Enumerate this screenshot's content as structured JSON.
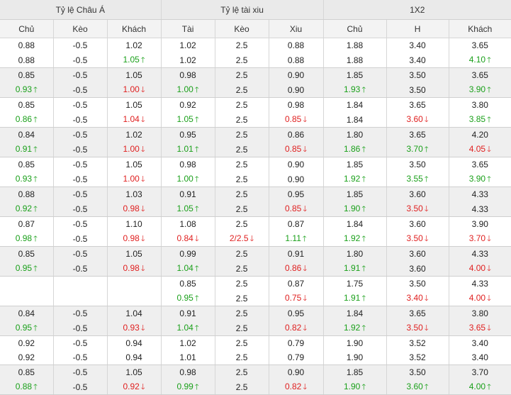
{
  "groups": [
    "Tỷ lệ Châu Á",
    "Tỷ lệ tài xiu",
    "1X2"
  ],
  "columns": [
    "Chủ",
    "Kèo",
    "Khách",
    "Tài",
    "Kèo",
    "Xiu",
    "Chủ",
    "H",
    "Khách"
  ],
  "up_arrow": "🡑",
  "down_arrow": "🡓",
  "colors": {
    "up": "#1aa01a",
    "down": "#e02020",
    "header_bg": "#eaeaea",
    "row_alt_bg": "#efefef"
  },
  "rows": [
    [
      [
        {
          "v": "0.88"
        },
        {
          "v": "-0.5"
        },
        {
          "v": "1.02"
        },
        {
          "v": "1.02"
        },
        {
          "v": "2.5"
        },
        {
          "v": "0.88"
        },
        {
          "v": "1.88"
        },
        {
          "v": "3.40"
        },
        {
          "v": "3.65"
        }
      ],
      [
        {
          "v": "0.88"
        },
        {
          "v": "-0.5"
        },
        {
          "v": "1.05",
          "d": "up"
        },
        {
          "v": "1.02"
        },
        {
          "v": "2.5"
        },
        {
          "v": "0.88"
        },
        {
          "v": "1.88"
        },
        {
          "v": "3.40"
        },
        {
          "v": "4.10",
          "d": "up"
        }
      ]
    ],
    [
      [
        {
          "v": "0.85"
        },
        {
          "v": "-0.5"
        },
        {
          "v": "1.05"
        },
        {
          "v": "0.98"
        },
        {
          "v": "2.5"
        },
        {
          "v": "0.90"
        },
        {
          "v": "1.85"
        },
        {
          "v": "3.50"
        },
        {
          "v": "3.65"
        }
      ],
      [
        {
          "v": "0.93",
          "d": "up"
        },
        {
          "v": "-0.5"
        },
        {
          "v": "1.00",
          "d": "down"
        },
        {
          "v": "1.00",
          "d": "up"
        },
        {
          "v": "2.5"
        },
        {
          "v": "0.90"
        },
        {
          "v": "1.93",
          "d": "up"
        },
        {
          "v": "3.50"
        },
        {
          "v": "3.90",
          "d": "up"
        }
      ]
    ],
    [
      [
        {
          "v": "0.85"
        },
        {
          "v": "-0.5"
        },
        {
          "v": "1.05"
        },
        {
          "v": "0.92"
        },
        {
          "v": "2.5"
        },
        {
          "v": "0.98"
        },
        {
          "v": "1.84"
        },
        {
          "v": "3.65"
        },
        {
          "v": "3.80"
        }
      ],
      [
        {
          "v": "0.86",
          "d": "up"
        },
        {
          "v": "-0.5"
        },
        {
          "v": "1.04",
          "d": "down"
        },
        {
          "v": "1.05",
          "d": "up"
        },
        {
          "v": "2.5"
        },
        {
          "v": "0.85",
          "d": "down"
        },
        {
          "v": "1.84"
        },
        {
          "v": "3.60",
          "d": "down"
        },
        {
          "v": "3.85",
          "d": "up"
        }
      ]
    ],
    [
      [
        {
          "v": "0.84"
        },
        {
          "v": "-0.5"
        },
        {
          "v": "1.02"
        },
        {
          "v": "0.95"
        },
        {
          "v": "2.5"
        },
        {
          "v": "0.86"
        },
        {
          "v": "1.80"
        },
        {
          "v": "3.65"
        },
        {
          "v": "4.20"
        }
      ],
      [
        {
          "v": "0.91",
          "d": "up"
        },
        {
          "v": "-0.5"
        },
        {
          "v": "1.00",
          "d": "down"
        },
        {
          "v": "1.01",
          "d": "up"
        },
        {
          "v": "2.5"
        },
        {
          "v": "0.85",
          "d": "down"
        },
        {
          "v": "1.86",
          "d": "up"
        },
        {
          "v": "3.70",
          "d": "up"
        },
        {
          "v": "4.05",
          "d": "down"
        }
      ]
    ],
    [
      [
        {
          "v": "0.85"
        },
        {
          "v": "-0.5"
        },
        {
          "v": "1.05"
        },
        {
          "v": "0.98"
        },
        {
          "v": "2.5"
        },
        {
          "v": "0.90"
        },
        {
          "v": "1.85"
        },
        {
          "v": "3.50"
        },
        {
          "v": "3.65"
        }
      ],
      [
        {
          "v": "0.93",
          "d": "up"
        },
        {
          "v": "-0.5"
        },
        {
          "v": "1.00",
          "d": "down"
        },
        {
          "v": "1.00",
          "d": "up"
        },
        {
          "v": "2.5"
        },
        {
          "v": "0.90"
        },
        {
          "v": "1.92",
          "d": "up"
        },
        {
          "v": "3.55",
          "d": "up"
        },
        {
          "v": "3.90",
          "d": "up"
        }
      ]
    ],
    [
      [
        {
          "v": "0.88"
        },
        {
          "v": "-0.5"
        },
        {
          "v": "1.03"
        },
        {
          "v": "0.91"
        },
        {
          "v": "2.5"
        },
        {
          "v": "0.95"
        },
        {
          "v": "1.85"
        },
        {
          "v": "3.60"
        },
        {
          "v": "4.33"
        }
      ],
      [
        {
          "v": "0.92",
          "d": "up"
        },
        {
          "v": "-0.5"
        },
        {
          "v": "0.98",
          "d": "down"
        },
        {
          "v": "1.05",
          "d": "up"
        },
        {
          "v": "2.5"
        },
        {
          "v": "0.85",
          "d": "down"
        },
        {
          "v": "1.90",
          "d": "up"
        },
        {
          "v": "3.50",
          "d": "down"
        },
        {
          "v": "4.33"
        }
      ]
    ],
    [
      [
        {
          "v": "0.87"
        },
        {
          "v": "-0.5"
        },
        {
          "v": "1.10"
        },
        {
          "v": "1.08"
        },
        {
          "v": "2.5"
        },
        {
          "v": "0.87"
        },
        {
          "v": "1.84"
        },
        {
          "v": "3.60"
        },
        {
          "v": "3.90"
        }
      ],
      [
        {
          "v": "0.98",
          "d": "up"
        },
        {
          "v": "-0.5"
        },
        {
          "v": "0.98",
          "d": "down"
        },
        {
          "v": "0.84",
          "d": "down"
        },
        {
          "v": "2/2.5",
          "d": "down"
        },
        {
          "v": "1.11",
          "d": "up"
        },
        {
          "v": "1.92",
          "d": "up"
        },
        {
          "v": "3.50",
          "d": "down"
        },
        {
          "v": "3.70",
          "d": "down"
        }
      ]
    ],
    [
      [
        {
          "v": "0.85"
        },
        {
          "v": "-0.5"
        },
        {
          "v": "1.05"
        },
        {
          "v": "0.99"
        },
        {
          "v": "2.5"
        },
        {
          "v": "0.91"
        },
        {
          "v": "1.80"
        },
        {
          "v": "3.60"
        },
        {
          "v": "4.33"
        }
      ],
      [
        {
          "v": "0.95",
          "d": "up"
        },
        {
          "v": "-0.5"
        },
        {
          "v": "0.98",
          "d": "down"
        },
        {
          "v": "1.04",
          "d": "up"
        },
        {
          "v": "2.5"
        },
        {
          "v": "0.86",
          "d": "down"
        },
        {
          "v": "1.91",
          "d": "up"
        },
        {
          "v": "3.60"
        },
        {
          "v": "4.00",
          "d": "down"
        }
      ]
    ],
    [
      [
        {
          "v": ""
        },
        {
          "v": ""
        },
        {
          "v": ""
        },
        {
          "v": "0.85"
        },
        {
          "v": "2.5"
        },
        {
          "v": "0.87"
        },
        {
          "v": "1.75"
        },
        {
          "v": "3.50"
        },
        {
          "v": "4.33"
        }
      ],
      [
        {
          "v": ""
        },
        {
          "v": ""
        },
        {
          "v": ""
        },
        {
          "v": "0.95",
          "d": "up"
        },
        {
          "v": "2.5"
        },
        {
          "v": "0.75",
          "d": "down"
        },
        {
          "v": "1.91",
          "d": "up"
        },
        {
          "v": "3.40",
          "d": "down"
        },
        {
          "v": "4.00",
          "d": "down"
        }
      ]
    ],
    [
      [
        {
          "v": "0.84"
        },
        {
          "v": "-0.5"
        },
        {
          "v": "1.04"
        },
        {
          "v": "0.91"
        },
        {
          "v": "2.5"
        },
        {
          "v": "0.95"
        },
        {
          "v": "1.84"
        },
        {
          "v": "3.65"
        },
        {
          "v": "3.80"
        }
      ],
      [
        {
          "v": "0.95",
          "d": "up"
        },
        {
          "v": "-0.5"
        },
        {
          "v": "0.93",
          "d": "down"
        },
        {
          "v": "1.04",
          "d": "up"
        },
        {
          "v": "2.5"
        },
        {
          "v": "0.82",
          "d": "down"
        },
        {
          "v": "1.92",
          "d": "up"
        },
        {
          "v": "3.50",
          "d": "down"
        },
        {
          "v": "3.65",
          "d": "down"
        }
      ]
    ],
    [
      [
        {
          "v": "0.92"
        },
        {
          "v": "-0.5"
        },
        {
          "v": "0.94"
        },
        {
          "v": "1.02"
        },
        {
          "v": "2.5"
        },
        {
          "v": "0.79"
        },
        {
          "v": "1.90"
        },
        {
          "v": "3.52"
        },
        {
          "v": "3.40"
        }
      ],
      [
        {
          "v": "0.92"
        },
        {
          "v": "-0.5"
        },
        {
          "v": "0.94"
        },
        {
          "v": "1.01"
        },
        {
          "v": "2.5"
        },
        {
          "v": "0.79"
        },
        {
          "v": "1.90"
        },
        {
          "v": "3.52"
        },
        {
          "v": "3.40"
        }
      ]
    ],
    [
      [
        {
          "v": "0.85"
        },
        {
          "v": "-0.5"
        },
        {
          "v": "1.05"
        },
        {
          "v": "0.98"
        },
        {
          "v": "2.5"
        },
        {
          "v": "0.90"
        },
        {
          "v": "1.85"
        },
        {
          "v": "3.50"
        },
        {
          "v": "3.70"
        }
      ],
      [
        {
          "v": "0.88",
          "d": "up"
        },
        {
          "v": "-0.5"
        },
        {
          "v": "0.92",
          "d": "down"
        },
        {
          "v": "0.99",
          "d": "up"
        },
        {
          "v": "2.5"
        },
        {
          "v": "0.82",
          "d": "down"
        },
        {
          "v": "1.90",
          "d": "up"
        },
        {
          "v": "3.60",
          "d": "up"
        },
        {
          "v": "4.00",
          "d": "up"
        }
      ]
    ]
  ]
}
